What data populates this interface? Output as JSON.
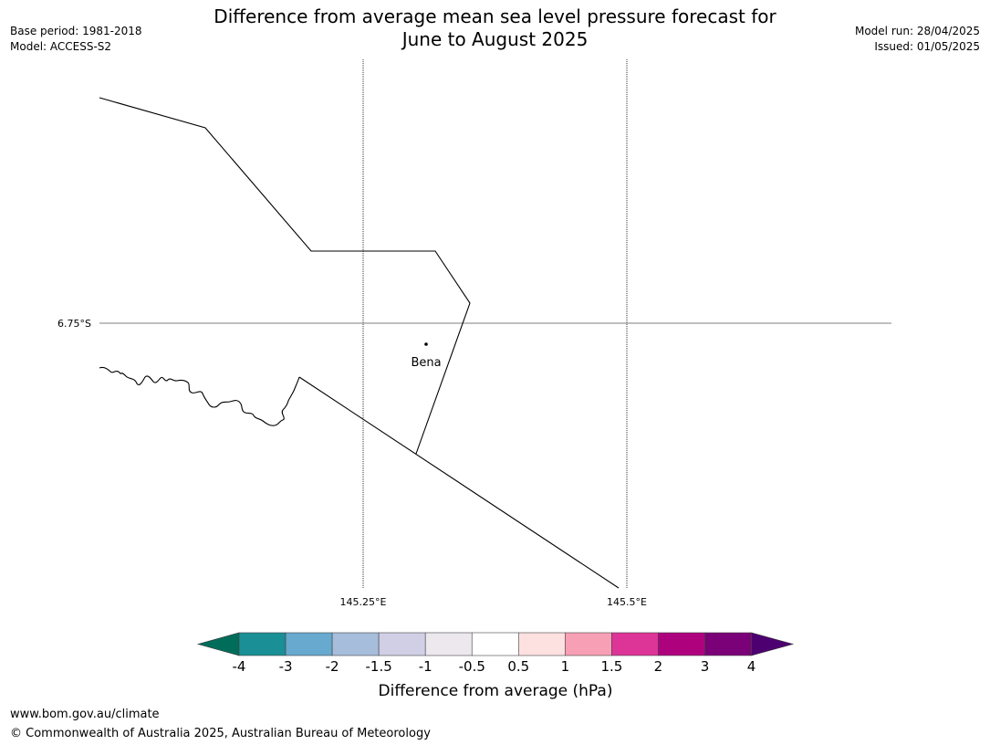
{
  "title_line1": "Difference from average mean sea level pressure forecast for",
  "title_line2": "June to August 2025",
  "base_period": "Base period: 1981-2018",
  "model": "Model: ACCESS-S2",
  "model_run": "Model run: 28/04/2025",
  "issued": "Issued: 01/05/2025",
  "map": {
    "lat_label": "6.75°S",
    "lon_labels": [
      "145.25°E",
      "145.5°E"
    ],
    "place": "Bena"
  },
  "colorbar": {
    "label": "Difference from average (hPa)",
    "ticks": [
      "-4",
      "-3",
      "-2",
      "-1.5",
      "-1",
      "-0.5",
      "0.5",
      "1",
      "1.5",
      "2",
      "3",
      "4"
    ],
    "under_color": "#006d5b",
    "over_color": "#4d0070",
    "colors": [
      "#1a8f96",
      "#67a9cf",
      "#a6bddb",
      "#d0cfe6",
      "#ece8ee",
      "#ffffff",
      "#fde0e0",
      "#f79fb5",
      "#dd3497",
      "#ae017e",
      "#7a0177"
    ]
  },
  "footer_url": "www.bom.gov.au/climate",
  "footer_copyright": "© Commonwealth of Australia 2025, Australian Bureau of Meteorology"
}
